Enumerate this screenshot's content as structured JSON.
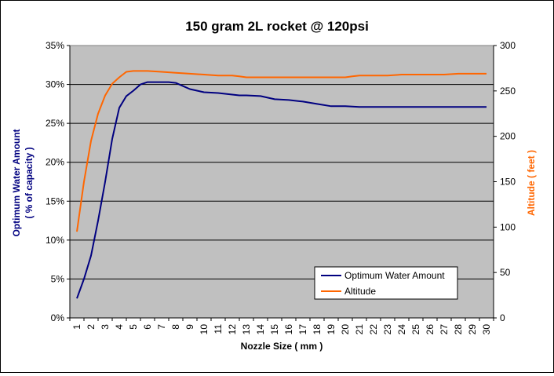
{
  "chart_data": {
    "type": "line",
    "title": "150 gram 2L rocket @ 120psi",
    "xlabel": "Nozzle Size ( mm )",
    "ylabel_left_line1": "Optimum Water Amount",
    "ylabel_left_line2": "( % of capacity )",
    "ylabel_right": "Altitude ( feet )",
    "x_ticks": [
      "1",
      "2",
      "3",
      "4",
      "5",
      "6",
      "7",
      "8",
      "9",
      "10",
      "11",
      "12",
      "13",
      "14",
      "15",
      "16",
      "17",
      "18",
      "19",
      "20",
      "21",
      "22",
      "23",
      "24",
      "25",
      "26",
      "27",
      "28",
      "29",
      "30"
    ],
    "y_left_ticks": [
      "0%",
      "5%",
      "10%",
      "15%",
      "20%",
      "25%",
      "30%",
      "35%"
    ],
    "y_right_ticks": [
      "0",
      "50",
      "100",
      "150",
      "200",
      "250",
      "300"
    ],
    "ylim_left": [
      0,
      35
    ],
    "ylim_right": [
      0,
      300
    ],
    "xlim": [
      1,
      30
    ],
    "grid": true,
    "legend_position": "bottom-right",
    "series": [
      {
        "name": "Optimum Water Amount",
        "axis": "left",
        "color": "#000080",
        "x": [
          1,
          1.5,
          2,
          2.5,
          3,
          3.5,
          4,
          4.5,
          5,
          5.5,
          6,
          6.5,
          7,
          7.5,
          8,
          8.5,
          9,
          9.5,
          10,
          11,
          12,
          12.5,
          13,
          14,
          14.5,
          15,
          16,
          17,
          18,
          19,
          20,
          21,
          22,
          23,
          24,
          25,
          26,
          27,
          28,
          29,
          30
        ],
        "values": [
          2.5,
          5,
          8,
          12.5,
          17.5,
          23,
          27,
          28.5,
          29.2,
          30,
          30.3,
          30.3,
          30.3,
          30.3,
          30.2,
          29.8,
          29.4,
          29.2,
          29,
          28.9,
          28.7,
          28.6,
          28.6,
          28.5,
          28.3,
          28.1,
          28,
          27.8,
          27.5,
          27.2,
          27.2,
          27.1,
          27.1,
          27.1,
          27.1,
          27.1,
          27.1,
          27.1,
          27.1,
          27.1,
          27.1
        ]
      },
      {
        "name": "Altitude",
        "axis": "right",
        "color": "#ff6600",
        "x": [
          1,
          1.5,
          2,
          2.5,
          3,
          3.5,
          4,
          4.5,
          5,
          5.5,
          6,
          7,
          8,
          9,
          10,
          11,
          12,
          12.5,
          13,
          14,
          15,
          16,
          17,
          18,
          19,
          20,
          20.5,
          21,
          22,
          23,
          24,
          25,
          26,
          27,
          28,
          29,
          30
        ],
        "values": [
          95,
          150,
          195,
          225,
          245,
          258,
          265,
          271,
          272,
          272,
          272,
          271,
          270,
          269,
          268,
          267,
          267,
          266,
          265,
          265,
          265,
          265,
          265,
          265,
          265,
          265,
          266,
          267,
          267,
          267,
          268,
          268,
          268,
          268,
          269,
          269,
          269
        ]
      }
    ]
  }
}
